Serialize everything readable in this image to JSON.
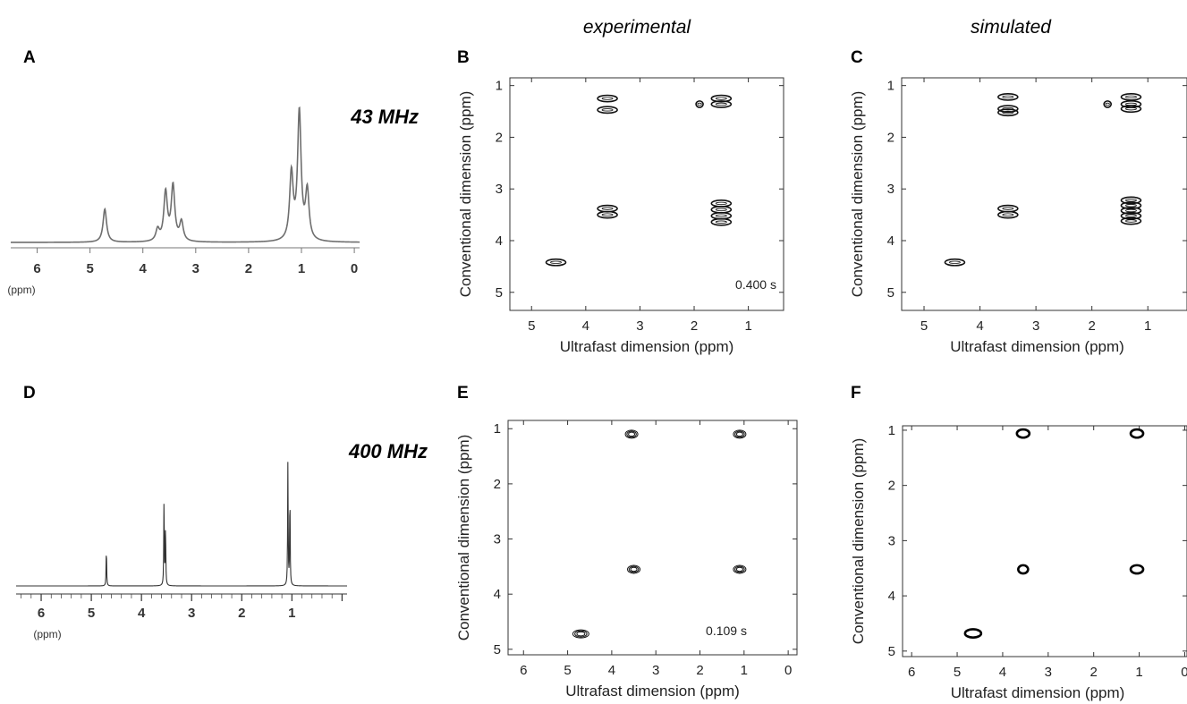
{
  "column_headers": {
    "left": "experimental",
    "right": "simulated"
  },
  "chart_data": [
    {
      "panel": "A",
      "type": "line",
      "field_label": "43 MHz",
      "xlabel": "(ppm)",
      "xlim": [
        6.5,
        -0.1
      ],
      "reverse_x": true,
      "xticks": [
        "6",
        "5",
        "4",
        "3",
        "2",
        "1",
        "0"
      ],
      "baseline_color": "#808080",
      "peaks": [
        {
          "x": 4.72,
          "h": 0.26
        },
        {
          "x": 3.72,
          "h": 0.09
        },
        {
          "x": 3.57,
          "h": 0.38
        },
        {
          "x": 3.43,
          "h": 0.43
        },
        {
          "x": 3.27,
          "h": 0.15
        },
        {
          "x": 1.19,
          "h": 0.52
        },
        {
          "x": 1.04,
          "h": 1.0
        },
        {
          "x": 0.89,
          "h": 0.38
        }
      ]
    },
    {
      "panel": "D",
      "type": "line",
      "field_label": "400 MHz",
      "xlabel": "(ppm)",
      "xlim": [
        6.5,
        -0.1
      ],
      "reverse_x": true,
      "xticks": [
        "6",
        "5",
        "4",
        "3",
        "2",
        "1"
      ],
      "peaks": [
        {
          "x": 4.7,
          "h": 0.32
        },
        {
          "x": 3.55,
          "h": 0.72
        },
        {
          "x": 3.52,
          "h": 0.5
        },
        {
          "x": 1.08,
          "h": 1.0
        },
        {
          "x": 1.04,
          "h": 0.78
        }
      ]
    },
    {
      "panel": "B",
      "type": "scatter",
      "subtitle": "experimental",
      "annotation": "0.400 s",
      "xlabel": "Ultrafast dimension (ppm)",
      "ylabel": "Conventional dimension (ppm)",
      "xlim": [
        5.4,
        0.35
      ],
      "ylim": [
        0.85,
        5.35
      ],
      "xticks": [
        5,
        4,
        3,
        2,
        1
      ],
      "yticks": [
        1,
        2,
        3,
        4,
        5
      ],
      "points": [
        {
          "x": 3.6,
          "y": 1.25
        },
        {
          "x": 3.6,
          "y": 1.47
        },
        {
          "x": 1.5,
          "y": 1.25
        },
        {
          "x": 1.5,
          "y": 1.36
        },
        {
          "x": 1.9,
          "y": 1.36
        },
        {
          "x": 3.6,
          "y": 3.38
        },
        {
          "x": 3.6,
          "y": 3.5
        },
        {
          "x": 1.5,
          "y": 3.28
        },
        {
          "x": 1.5,
          "y": 3.4
        },
        {
          "x": 1.5,
          "y": 3.52
        },
        {
          "x": 1.5,
          "y": 3.64
        },
        {
          "x": 4.55,
          "y": 4.42
        }
      ]
    },
    {
      "panel": "C",
      "type": "scatter",
      "subtitle": "simulated",
      "xlabel": "Ultrafast dimension (ppm)",
      "ylabel": "Conventional dimension (ppm)",
      "xlim": [
        5.4,
        0.3
      ],
      "ylim": [
        0.85,
        5.35
      ],
      "xticks": [
        5,
        4,
        3,
        2,
        1
      ],
      "yticks": [
        1,
        2,
        3,
        4,
        5
      ],
      "points": [
        {
          "x": 3.5,
          "y": 1.22
        },
        {
          "x": 3.5,
          "y": 1.45
        },
        {
          "x": 3.5,
          "y": 1.52
        },
        {
          "x": 1.3,
          "y": 1.22
        },
        {
          "x": 1.3,
          "y": 1.36
        },
        {
          "x": 1.3,
          "y": 1.45
        },
        {
          "x": 1.72,
          "y": 1.36
        },
        {
          "x": 3.5,
          "y": 3.38
        },
        {
          "x": 3.5,
          "y": 3.5
        },
        {
          "x": 1.3,
          "y": 3.22
        },
        {
          "x": 1.3,
          "y": 3.32
        },
        {
          "x": 1.3,
          "y": 3.42
        },
        {
          "x": 1.3,
          "y": 3.52
        },
        {
          "x": 1.3,
          "y": 3.62
        },
        {
          "x": 4.45,
          "y": 4.42
        }
      ]
    },
    {
      "panel": "E",
      "type": "scatter",
      "subtitle": "experimental",
      "annotation": "0.109 s",
      "xlabel": "Ultrafast dimension (ppm)",
      "ylabel": "Conventional dimension (ppm)",
      "xlim": [
        6.35,
        -0.2
      ],
      "ylim": [
        0.85,
        5.1
      ],
      "xticks": [
        6,
        5,
        4,
        3,
        2,
        1,
        0
      ],
      "yticks": [
        1,
        2,
        3,
        4,
        5
      ],
      "points": [
        {
          "x": 3.55,
          "y": 1.1
        },
        {
          "x": 1.1,
          "y": 1.1
        },
        {
          "x": 3.5,
          "y": 3.55
        },
        {
          "x": 1.1,
          "y": 3.55
        },
        {
          "x": 4.7,
          "y": 4.72
        }
      ]
    },
    {
      "panel": "F",
      "type": "scatter",
      "subtitle": "simulated",
      "xlabel": "Ultrafast dimension (ppm)",
      "ylabel": "Conventional dimension (ppm)",
      "xlim": [
        6.2,
        -0.05
      ],
      "ylim": [
        0.92,
        5.1
      ],
      "xticks": [
        6,
        5,
        4,
        3,
        2,
        1,
        0
      ],
      "yticks": [
        1,
        2,
        3,
        4,
        5
      ],
      "points": [
        {
          "x": 3.55,
          "y": 1.06
        },
        {
          "x": 1.05,
          "y": 1.06
        },
        {
          "x": 3.55,
          "y": 3.52
        },
        {
          "x": 1.05,
          "y": 3.52
        },
        {
          "x": 4.65,
          "y": 4.68
        }
      ]
    }
  ]
}
